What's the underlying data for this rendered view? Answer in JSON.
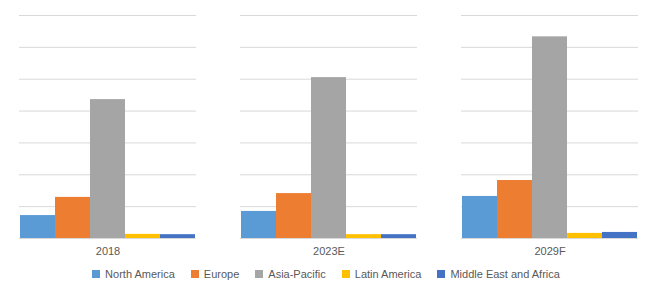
{
  "chart_data": {
    "type": "bar",
    "categories": [
      "2018",
      "2023E",
      "2029F"
    ],
    "series": [
      {
        "name": "North America",
        "color": "#5b9bd5",
        "values": [
          0.72,
          0.85,
          1.32
        ]
      },
      {
        "name": "Europe",
        "color": "#ed7d31",
        "values": [
          1.29,
          1.41,
          1.82
        ]
      },
      {
        "name": "Asia-Pacific",
        "color": "#a5a5a5",
        "values": [
          4.36,
          5.05,
          6.33
        ]
      },
      {
        "name": "Latin America",
        "color": "#ffc000",
        "values": [
          0.13,
          0.12,
          0.16
        ]
      },
      {
        "name": "Middle East and Africa",
        "color": "#4472c4",
        "values": [
          0.12,
          0.12,
          0.19
        ]
      }
    ],
    "ylim": [
      0,
      7
    ],
    "yticks": [
      0,
      1,
      2,
      3,
      4,
      5,
      6,
      7
    ],
    "grid": true,
    "tick_labels": "x",
    "legend": "bottom"
  }
}
